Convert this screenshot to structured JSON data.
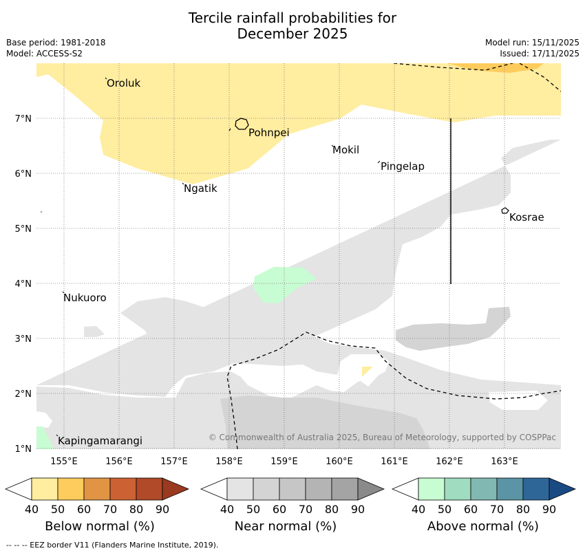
{
  "header": {
    "title_line1": "Tercile rainfall probabilities for",
    "title_line2": "December 2025",
    "base_period": "Base period: 1981-2018",
    "model": "Model: ACCESS-S2",
    "model_run": "Model run: 15/11/2025",
    "issued": "Issued: 17/11/2025"
  },
  "map": {
    "lon_labels": [
      "155°E",
      "156°E",
      "157°E",
      "158°E",
      "159°E",
      "160°E",
      "161°E",
      "162°E",
      "163°E"
    ],
    "lat_labels": [
      "7°N",
      "6°N",
      "5°N",
      "4°N",
      "3°N",
      "2°N",
      "1°N"
    ],
    "places": [
      {
        "name": "Oroluk"
      },
      {
        "name": "Pohnpei"
      },
      {
        "name": "Mokil"
      },
      {
        "name": "Pingelap"
      },
      {
        "name": "Ngatik"
      },
      {
        "name": "Kosrae"
      },
      {
        "name": "Nukuoro"
      },
      {
        "name": "Kapingamarangi"
      }
    ],
    "copyright": "© Commonwealth of Australia 2025, Bureau of Meteorology, supported by COSPPac",
    "colors": {
      "below_50": "#ffeda0",
      "below_60": "#fecc5c",
      "near_50": "#e4e4e4",
      "near_60": "#d4d4d4",
      "above_50": "#c8fcd2"
    }
  },
  "legend": {
    "ticks": [
      "40",
      "50",
      "60",
      "70",
      "80",
      "90"
    ],
    "below": {
      "label": "Below normal (%)",
      "colors": [
        "#ffeda0",
        "#fecc5c",
        "#e09444",
        "#cc6233",
        "#b04a28",
        "#9a3a20"
      ]
    },
    "near": {
      "label": "Near normal (%)",
      "colors": [
        "#e4e4e4",
        "#d4d4d4",
        "#c6c6c6",
        "#b4b4b4",
        "#a4a4a4",
        "#8a8a8a"
      ]
    },
    "above": {
      "label": "Above normal (%)",
      "colors": [
        "#c8fcd2",
        "#a0dcc0",
        "#82b8b2",
        "#5b94a4",
        "#2f6698",
        "#1a4a82"
      ]
    }
  },
  "footer": "--  --  -- EEZ border V11 (Flanders Marine Institute, 2019)."
}
